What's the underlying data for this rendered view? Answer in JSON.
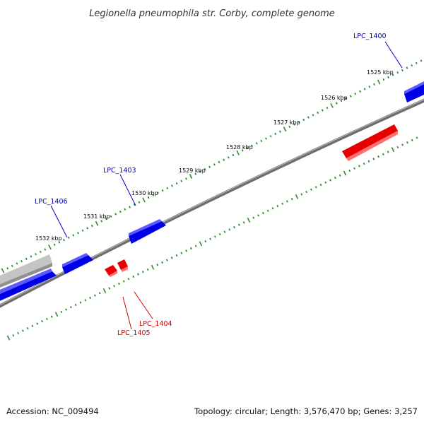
{
  "title": "Legionella pneumophila str. Corby, complete genome",
  "footer": {
    "accession": "Accession: NC_009494",
    "summary": "Topology: circular; Length: 3,576,470 bp; Genes: 3,257"
  },
  "colors": {
    "forward_gene": "#0000ee",
    "reverse_gene": "#ee0000",
    "other_feature": "#b0b0b0",
    "backbone": "#808080",
    "ticks": "#2e8b2e",
    "forward_label": "#0000cc",
    "reverse_label": "#cc0000"
  },
  "scale": {
    "unit": "kbp",
    "labels": [
      "1525 kbp",
      "1526 kbp",
      "1527 kbp",
      "1528 kbp",
      "1529 kbp",
      "1530 kbp",
      "1531 kbp",
      "1532 kbp"
    ]
  },
  "genes": [
    {
      "label": "LPC_1400",
      "strand": "forward"
    },
    {
      "label": "LPC_1403",
      "strand": "forward"
    },
    {
      "label": "LPC_1406",
      "strand": "forward"
    },
    {
      "label": "LPC_1404",
      "strand": "reverse"
    },
    {
      "label": "LPC_1405",
      "strand": "reverse"
    }
  ]
}
